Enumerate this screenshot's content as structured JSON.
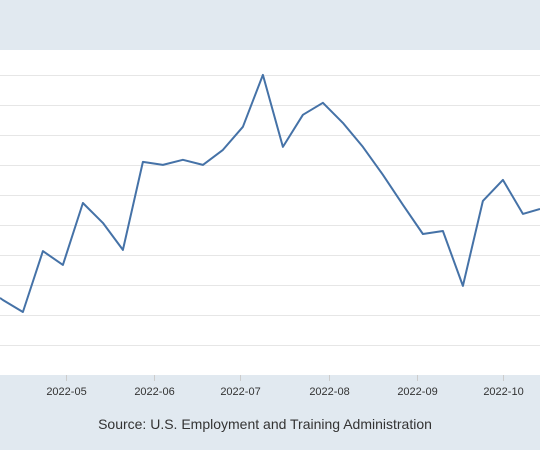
{
  "source_note": "Source: U.S. Employment and Training Administration",
  "colors": {
    "background": "#e1e9f0",
    "plot_background": "#ffffff",
    "line": "#4572a7",
    "grid": "#e6e6e6",
    "text": "#333333"
  },
  "chart_data": {
    "type": "line",
    "title": "",
    "xlabel": "",
    "ylabel": "",
    "grid": "horizontal",
    "legend": "none",
    "x_ticks": [
      {
        "label": "2022-05",
        "date": "2022-05-01"
      },
      {
        "label": "2022-06",
        "date": "2022-06-01"
      },
      {
        "label": "2022-07",
        "date": "2022-07-01"
      },
      {
        "label": "2022-08",
        "date": "2022-08-01"
      },
      {
        "label": "2022-09",
        "date": "2022-09-01"
      },
      {
        "label": "2022-10",
        "date": "2022-10-01"
      }
    ],
    "x_range": [
      "2022-04-08",
      "2022-10-14"
    ],
    "y_range": [
      0,
      10.83
    ],
    "y_gridlines": [
      1,
      2,
      3,
      4,
      5,
      6,
      7,
      8,
      9,
      10
    ],
    "series": [
      {
        "values": [
          {
            "x": "2022-04-08",
            "y": 2.57
          },
          {
            "x": "2022-04-09",
            "y": 2.5
          },
          {
            "x": "2022-04-16",
            "y": 2.1
          },
          {
            "x": "2022-04-23",
            "y": 4.13
          },
          {
            "x": "2022-04-30",
            "y": 3.67
          },
          {
            "x": "2022-05-07",
            "y": 5.73
          },
          {
            "x": "2022-05-14",
            "y": 5.07
          },
          {
            "x": "2022-05-21",
            "y": 4.17
          },
          {
            "x": "2022-05-28",
            "y": 7.1
          },
          {
            "x": "2022-06-04",
            "y": 7.0
          },
          {
            "x": "2022-06-11",
            "y": 7.17
          },
          {
            "x": "2022-06-18",
            "y": 7.0
          },
          {
            "x": "2022-06-25",
            "y": 7.5
          },
          {
            "x": "2022-07-02",
            "y": 8.27
          },
          {
            "x": "2022-07-09",
            "y": 10.0
          },
          {
            "x": "2022-07-16",
            "y": 7.6
          },
          {
            "x": "2022-07-23",
            "y": 8.67
          },
          {
            "x": "2022-07-30",
            "y": 9.07
          },
          {
            "x": "2022-08-06",
            "y": 8.4
          },
          {
            "x": "2022-08-13",
            "y": 7.6
          },
          {
            "x": "2022-08-20",
            "y": 6.67
          },
          {
            "x": "2022-08-27",
            "y": 5.67
          },
          {
            "x": "2022-09-03",
            "y": 4.7
          },
          {
            "x": "2022-09-10",
            "y": 4.8
          },
          {
            "x": "2022-09-17",
            "y": 2.97
          },
          {
            "x": "2022-09-24",
            "y": 5.8
          },
          {
            "x": "2022-10-01",
            "y": 6.5
          },
          {
            "x": "2022-10-08",
            "y": 5.37
          },
          {
            "x": "2022-10-14",
            "y": 5.53
          }
        ]
      }
    ]
  }
}
